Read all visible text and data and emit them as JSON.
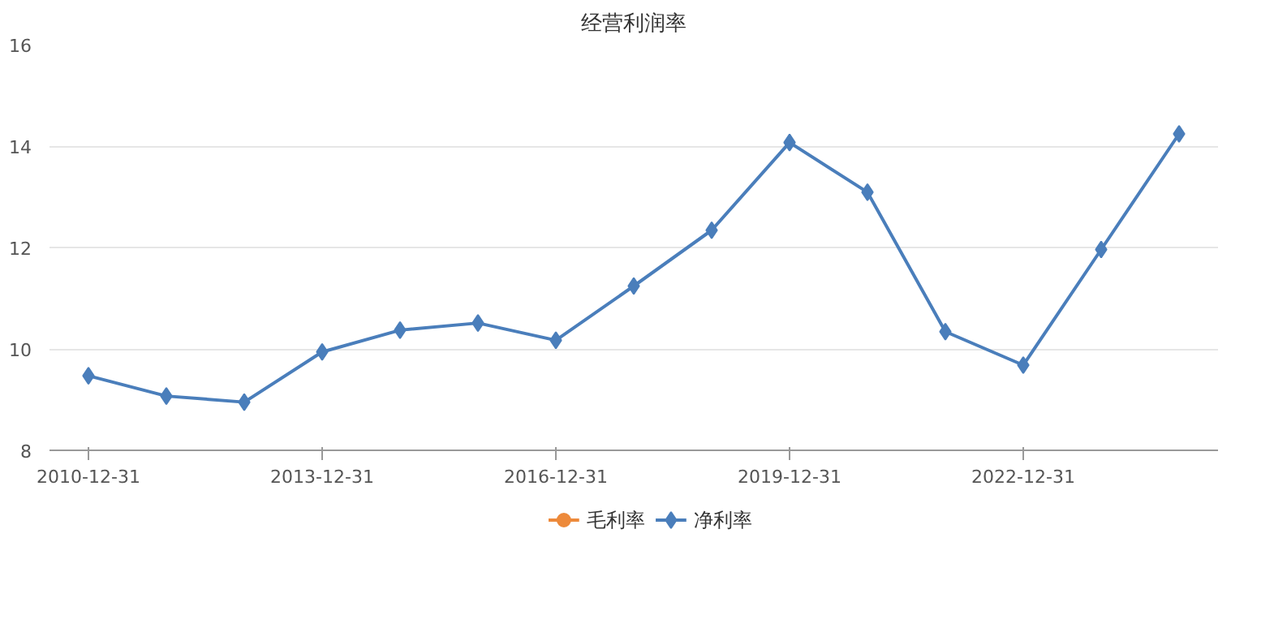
{
  "chart_data": {
    "type": "line",
    "title": "经营利润率",
    "categories": [
      "2010-12-31",
      null,
      null,
      "2013-12-31",
      null,
      null,
      "2016-12-31",
      null,
      null,
      "2019-12-31",
      null,
      null,
      "2022-12-31",
      null,
      null
    ],
    "series": [
      {
        "name": "毛利率",
        "color": "#ed8a3b",
        "marker": "circle",
        "values": [
          null,
          null,
          null,
          null,
          null,
          null,
          null,
          null,
          null,
          null,
          null,
          null,
          null,
          null,
          null
        ]
      },
      {
        "name": "净利率",
        "color": "#4a7ebb",
        "marker": "diamond",
        "values": [
          9.47,
          9.07,
          8.95,
          9.94,
          10.37,
          10.51,
          10.17,
          11.24,
          12.34,
          14.07,
          13.09,
          10.34,
          9.68,
          11.96,
          14.24
        ]
      }
    ],
    "ylim": [
      8,
      16
    ],
    "yticks": [
      8,
      10,
      12,
      14,
      16
    ],
    "grid": "y",
    "legend": "bottom"
  }
}
